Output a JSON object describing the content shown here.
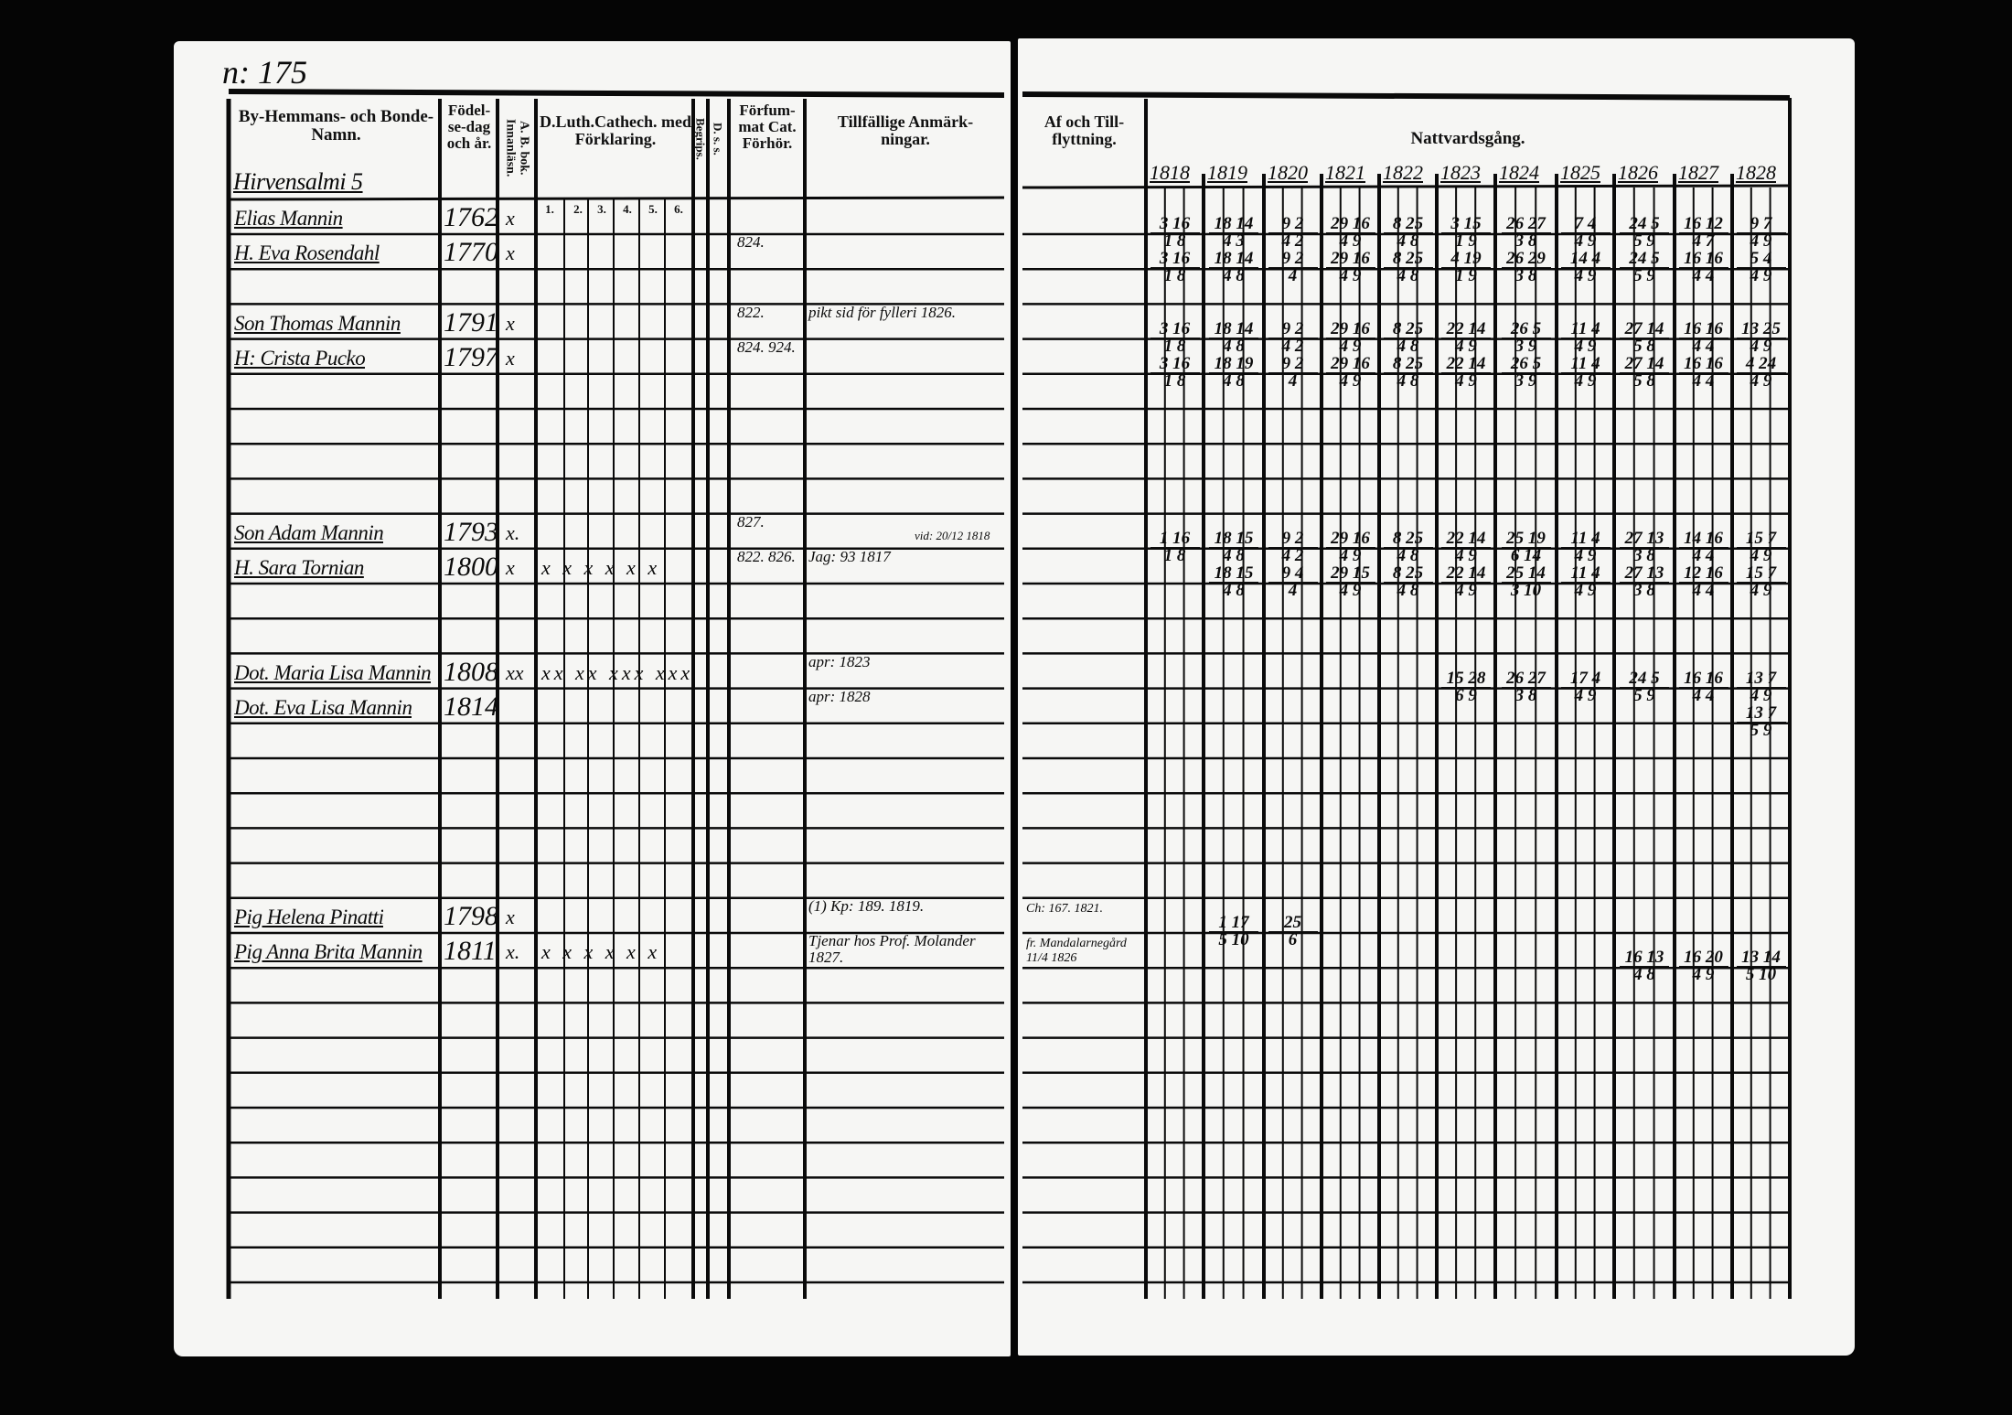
{
  "left_page": {
    "page_number": "n: 175",
    "headers": {
      "name": "By-Hemmans- och Bonde-Namn.",
      "birth": "Födel-se-dag och år.",
      "reading": "A. B. bok. Innanläsn.",
      "catechism": "D.Luth.Cathech. med Förklaring.",
      "catechism_parts": [
        "1.",
        "2.",
        "3.",
        "4.",
        "5.",
        "6."
      ],
      "understanding": "Begrips.",
      "ds": "D. s. s.",
      "hearing": "Förfum-mat Cat. Förhör.",
      "remarks": "Tillfällige Anmärk-ningar."
    },
    "village": "Hirvensalmi 5"
  },
  "right_page": {
    "headers": {
      "moving": "Af och Till-flyttning.",
      "communion": "Nattvardsgång."
    },
    "years": [
      "1818",
      "1819",
      "1820",
      "1821",
      "1822",
      "1823",
      "1824",
      "1825",
      "1826",
      "1827",
      "1828"
    ]
  },
  "persons": [
    {
      "name": "Elias Mannin",
      "born": "1762",
      "reading": "x",
      "catechism": "",
      "hearing": "",
      "remarks": "",
      "moving": "",
      "communion": [
        [
          "3 16",
          "1 8"
        ],
        [
          "18 14",
          "4 3"
        ],
        [
          "9 2",
          "4 2"
        ],
        [
          "29 16",
          "4 9"
        ],
        [
          "8 25",
          "4 8"
        ],
        [
          "3 15",
          "1 9"
        ],
        [
          "26 27",
          "3 8"
        ],
        [
          "7 4",
          "4 9"
        ],
        [
          "24 5",
          "5 9"
        ],
        [
          "16 12",
          "4 7"
        ],
        [
          "9 7",
          "4 9"
        ]
      ]
    },
    {
      "name": "H. Eva Rosendahl",
      "born": "1770",
      "reading": "x",
      "catechism": "",
      "hearing": "824.",
      "remarks": "",
      "moving": "",
      "communion": [
        [
          "3 16",
          "1 8"
        ],
        [
          "18 14",
          "4 8"
        ],
        [
          "9 2",
          "4"
        ],
        [
          "29 16",
          "4 9"
        ],
        [
          "8 25",
          "4 8"
        ],
        [
          "4 19",
          "1 9"
        ],
        [
          "26 29",
          "3 8"
        ],
        [
          "14 4",
          "4 9"
        ],
        [
          "24 5",
          "5 9"
        ],
        [
          "16 16",
          "4 4"
        ],
        [
          "5 4",
          "4 9"
        ]
      ]
    },
    {
      "name": "Son Thomas Mannin",
      "born": "1791",
      "reading": "x",
      "catechism": "",
      "hearing": "822.",
      "remarks": "pikt sid för fylleri 1826.",
      "moving": "",
      "communion": [
        [
          "3 16",
          "1 8"
        ],
        [
          "18 14",
          "4 8"
        ],
        [
          "9 2",
          "4 2"
        ],
        [
          "29 16",
          "4 9"
        ],
        [
          "8 25",
          "4 8"
        ],
        [
          "22 14",
          "4 9"
        ],
        [
          "26 5",
          "3 9"
        ],
        [
          "11 4",
          "4 9"
        ],
        [
          "27 14",
          "5 8"
        ],
        [
          "16 16",
          "4 4"
        ],
        [
          "13 25",
          "4 9"
        ]
      ]
    },
    {
      "name": "H: Crista Pucko",
      "born": "1797",
      "reading": "x",
      "catechism": "",
      "hearing": "824. 924.",
      "remarks": "",
      "moving": "",
      "communion": [
        [
          "3 16",
          "1 8"
        ],
        [
          "18 19",
          "4 8"
        ],
        [
          "9 2",
          "4"
        ],
        [
          "29 16",
          "4 9"
        ],
        [
          "8 25",
          "4 8"
        ],
        [
          "22 14",
          "4 9"
        ],
        [
          "26 5",
          "3 9"
        ],
        [
          "11 4",
          "4 9"
        ],
        [
          "27 14",
          "5 8"
        ],
        [
          "16 16",
          "4 4"
        ],
        [
          "4 24",
          "4 9"
        ]
      ]
    },
    {
      "name": "Son Adam Mannin",
      "born": "1793",
      "reading": "x.",
      "catechism": "",
      "hearing": "827.",
      "remarks": "",
      "moving": "",
      "communion": [
        [
          "1 16",
          "1 8"
        ],
        [
          "18 15",
          "4 8"
        ],
        [
          "9 2",
          "4 2"
        ],
        [
          "29 16",
          "4 9"
        ],
        [
          "8 25",
          "4 8"
        ],
        [
          "22 14",
          "4 9"
        ],
        [
          "25 19",
          "6 14"
        ],
        [
          "11 4",
          "4 9"
        ],
        [
          "27 13",
          "3 8"
        ],
        [
          "14 16",
          "4 4"
        ],
        [
          "15 7",
          "4 9"
        ]
      ]
    },
    {
      "name": "H. Sara Tornian",
      "born": "1800",
      "reading": "x",
      "catechism": "x x x x x x",
      "hearing": "822. 826.",
      "remarks": "Jag: 93 1817",
      "remarks_side": "vid: 20/12 1818",
      "moving": "",
      "communion": [
        null,
        [
          "18 15",
          "4 8"
        ],
        [
          "9 4",
          "4"
        ],
        [
          "29 15",
          "4 9"
        ],
        [
          "8 25",
          "4 8"
        ],
        [
          "22 14",
          "4 9"
        ],
        [
          "25 14",
          "3 10"
        ],
        [
          "11 4",
          "4 9"
        ],
        [
          "27 13",
          "3 8"
        ],
        [
          "12 16",
          "4 4"
        ],
        [
          "15 7",
          "4 9"
        ]
      ]
    },
    {
      "name": "Dot. Maria Lisa Mannin",
      "born": "1808",
      "reading": "xx",
      "catechism": "xx xx xxx xxx",
      "hearing": "",
      "remarks": "apr: 1823",
      "moving": "",
      "communion": [
        null,
        null,
        null,
        null,
        null,
        [
          "15 28",
          "6 9"
        ],
        [
          "26 27",
          "3 8"
        ],
        [
          "17 4",
          "4 9"
        ],
        [
          "24 5",
          "5 9"
        ],
        [
          "16 16",
          "4 4"
        ],
        [
          "13 7",
          "4 9"
        ]
      ]
    },
    {
      "name": "Dot. Eva Lisa Mannin",
      "born": "1814",
      "reading": "",
      "catechism": "",
      "hearing": "",
      "remarks": "apr: 1828",
      "moving": "",
      "communion": [
        null,
        null,
        null,
        null,
        null,
        null,
        null,
        null,
        null,
        null,
        [
          "13 7",
          "5 9"
        ]
      ]
    },
    {
      "name": "Pig Helena Pinatti",
      "born": "1798",
      "reading": "x",
      "catechism": "",
      "hearing": "",
      "remarks": "(1) Kp: 189. 1819.",
      "moving": "Ch: 167. 1821.",
      "communion": [
        null,
        [
          "1 17",
          "5 10"
        ],
        [
          "25",
          "6"
        ],
        null,
        null,
        null,
        null,
        null,
        null,
        null,
        null
      ]
    },
    {
      "name": "Pig Anna Brita Mannin",
      "born": "1811",
      "reading": "x.",
      "catechism": "x x x x x x",
      "hearing": "",
      "remarks": "Tjenar hos Prof. Molander 1827.",
      "moving": "fr. Mandalarnegård 11/4 1826",
      "communion": [
        null,
        null,
        null,
        null,
        null,
        null,
        null,
        null,
        [
          "16 13",
          "4 8"
        ],
        [
          "16 20",
          "4 9"
        ],
        [
          "13 14",
          "5 10"
        ]
      ]
    }
  ]
}
